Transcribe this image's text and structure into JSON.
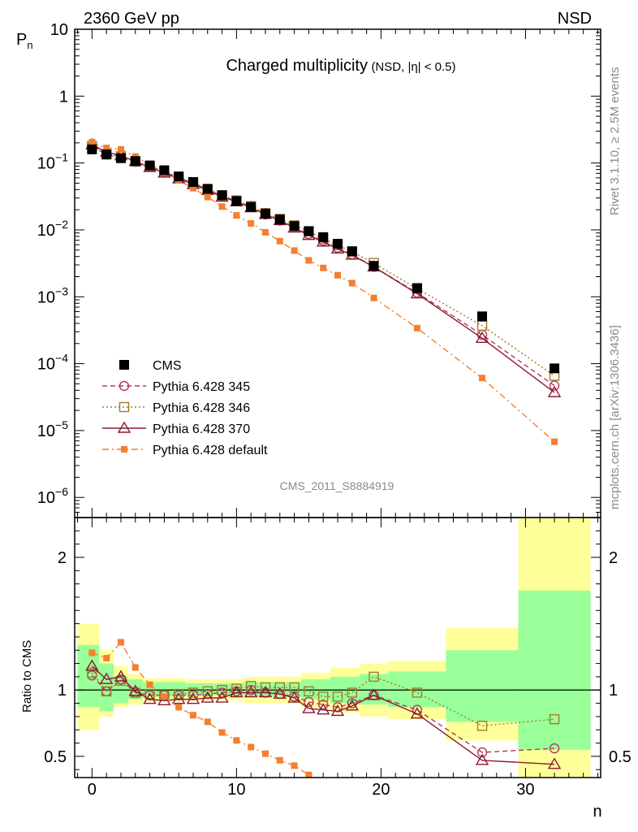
{
  "header": {
    "energy_label": "2360 GeV pp",
    "process_label": "NSD",
    "side_label_top": "Rivet 3.1.10, ≥ 2.5M events",
    "side_label_bottom": "mcplots.cern.ch [arXiv:1306.3436]",
    "analysis_id": "CMS_2011_S8884919"
  },
  "colors": {
    "cms": "#000000",
    "p345": "#b2385a",
    "p346": "#a07c28",
    "p370": "#8b1a30",
    "pdefault": "#f47f2f",
    "band_yellow": "#ffff99",
    "band_green": "#99ff99"
  },
  "chart_data": [
    {
      "type": "scatter",
      "panel": "main",
      "title": "Charged multiplicity",
      "title_suffix": "(NSD, |η| < 0.5)",
      "ylabel": "P",
      "ylabel_sub": "n",
      "yscale": "log",
      "ylim": [
        5e-07,
        10
      ],
      "xlim": [
        -1.2,
        35.2
      ],
      "y_ticks": [
        {
          "v": 1e-06,
          "m": "10",
          "e": "−6"
        },
        {
          "v": 1e-05,
          "m": "10",
          "e": "−5"
        },
        {
          "v": 0.0001,
          "m": "10",
          "e": "−4"
        },
        {
          "v": 0.001,
          "m": "10",
          "e": "−3"
        },
        {
          "v": 0.01,
          "m": "10",
          "e": "−2"
        },
        {
          "v": 0.1,
          "m": "10",
          "e": "−1"
        },
        {
          "v": 1,
          "m": "1",
          "e": ""
        },
        {
          "v": 10,
          "m": "10",
          "e": ""
        }
      ],
      "series": [
        {
          "name": "CMS",
          "key": "cms",
          "marker": "filled-square",
          "line": "none",
          "x": [
            0,
            1,
            2,
            3,
            4,
            5,
            6,
            7,
            8,
            9,
            10,
            11,
            12,
            13,
            14,
            15,
            16,
            17,
            18,
            19.5,
            22.5,
            27,
            32
          ],
          "y": [
            0.16,
            0.135,
            0.118,
            0.107,
            0.092,
            0.078,
            0.063,
            0.052,
            0.041,
            0.033,
            0.027,
            0.022,
            0.0175,
            0.0143,
            0.0114,
            0.0096,
            0.0078,
            0.0062,
            0.0048,
            0.0029,
            0.00135,
            0.00051,
            8.5e-05
          ]
        },
        {
          "name": "Pythia 6.428 345",
          "key": "p345",
          "marker": "open-circle",
          "line": "dashed",
          "x": [
            0,
            1,
            2,
            3,
            4,
            5,
            6,
            7,
            8,
            9,
            10,
            11,
            12,
            13,
            14,
            15,
            16,
            17,
            18,
            19.5,
            22.5,
            27,
            32
          ],
          "y": [
            0.178,
            0.133,
            0.127,
            0.104,
            0.088,
            0.074,
            0.06,
            0.05,
            0.04,
            0.032,
            0.027,
            0.022,
            0.017,
            0.0138,
            0.0109,
            0.0087,
            0.0069,
            0.0054,
            0.0043,
            0.0028,
            0.00115,
            0.00027,
            4.7e-05
          ]
        },
        {
          "name": "Pythia 6.428 346",
          "key": "p346",
          "marker": "open-square",
          "line": "dotted",
          "x": [
            0,
            1,
            2,
            3,
            4,
            5,
            6,
            7,
            8,
            9,
            10,
            11,
            12,
            13,
            14,
            15,
            16,
            17,
            18,
            19.5,
            22.5,
            27,
            32
          ],
          "y": [
            0.18,
            0.134,
            0.126,
            0.105,
            0.089,
            0.075,
            0.061,
            0.051,
            0.041,
            0.033,
            0.0275,
            0.0227,
            0.0178,
            0.0146,
            0.0117,
            0.0095,
            0.0074,
            0.0059,
            0.0047,
            0.0032,
            0.00132,
            0.00037,
            6.6e-05
          ]
        },
        {
          "name": "Pythia 6.428 370",
          "key": "p370",
          "marker": "open-triangle",
          "line": "solid",
          "x": [
            0,
            1,
            2,
            3,
            4,
            5,
            6,
            7,
            8,
            9,
            10,
            11,
            12,
            13,
            14,
            15,
            16,
            17,
            18,
            19.5,
            22.5,
            27,
            32
          ],
          "y": [
            0.188,
            0.146,
            0.129,
            0.106,
            0.086,
            0.071,
            0.058,
            0.048,
            0.039,
            0.031,
            0.0264,
            0.0215,
            0.0171,
            0.0138,
            0.0107,
            0.0083,
            0.0066,
            0.0052,
            0.0042,
            0.0028,
            0.00111,
            0.00024,
            3.7e-05
          ]
        },
        {
          "name": "Pythia 6.428 default",
          "key": "pdefault",
          "marker": "small-filled-square",
          "line": "dashdot",
          "x": [
            0,
            1,
            2,
            3,
            4,
            5,
            6,
            7,
            8,
            9,
            10,
            11,
            12,
            13,
            14,
            15,
            16,
            17,
            18,
            19.5,
            22.5,
            27,
            32
          ],
          "y": [
            0.205,
            0.168,
            0.16,
            0.125,
            0.096,
            0.074,
            0.055,
            0.042,
            0.031,
            0.0223,
            0.0165,
            0.0125,
            0.0092,
            0.0068,
            0.0049,
            0.0035,
            0.0027,
            0.0021,
            0.0016,
            0.00096,
            0.00034,
            6.1e-05,
            6.8e-06
          ]
        }
      ]
    },
    {
      "type": "line",
      "panel": "ratio",
      "ylabel": "Ratio to CMS",
      "xlabel": "n",
      "ylim": [
        0.34,
        2.3
      ],
      "xlim": [
        -1.2,
        35.2
      ],
      "x_ticks": [
        0,
        10,
        20,
        30
      ],
      "y_ticks": [
        0.5,
        1,
        2
      ],
      "reference": 1,
      "bands": [
        {
          "x0": -1,
          "x1": 0.5,
          "y_lo": 0.7,
          "y_hi": 1.5,
          "g_lo": 0.87,
          "g_hi": 1.34
        },
        {
          "x0": 0.5,
          "x1": 1.5,
          "y_lo": 0.8,
          "y_hi": 1.3,
          "g_lo": 0.84,
          "g_hi": 1.2
        },
        {
          "x0": 1.5,
          "x1": 2.5,
          "y_lo": 0.87,
          "y_hi": 1.18,
          "g_lo": 0.9,
          "g_hi": 1.1
        },
        {
          "x0": 2.5,
          "x1": 3.5,
          "y_lo": 0.89,
          "y_hi": 1.12,
          "g_lo": 0.93,
          "g_hi": 1.08
        },
        {
          "x0": 3.5,
          "x1": 6.5,
          "y_lo": 0.91,
          "y_hi": 1.09,
          "g_lo": 0.95,
          "g_hi": 1.06
        },
        {
          "x0": 6.5,
          "x1": 10.5,
          "y_lo": 0.92,
          "y_hi": 1.08,
          "g_lo": 0.96,
          "g_hi": 1.05
        },
        {
          "x0": 10.5,
          "x1": 14.5,
          "y_lo": 0.9,
          "y_hi": 1.1,
          "g_lo": 0.95,
          "g_hi": 1.06
        },
        {
          "x0": 14.5,
          "x1": 16.5,
          "y_lo": 0.87,
          "y_hi": 1.13,
          "g_lo": 0.93,
          "g_hi": 1.08
        },
        {
          "x0": 16.5,
          "x1": 18.5,
          "y_lo": 0.83,
          "y_hi": 1.17,
          "g_lo": 0.9,
          "g_hi": 1.1
        },
        {
          "x0": 18.5,
          "x1": 20.5,
          "y_lo": 0.8,
          "y_hi": 1.2,
          "g_lo": 0.89,
          "g_hi": 1.12
        },
        {
          "x0": 20.5,
          "x1": 24.5,
          "y_lo": 0.78,
          "y_hi": 1.22,
          "g_lo": 0.87,
          "g_hi": 1.14
        },
        {
          "x0": 24.5,
          "x1": 29.5,
          "y_lo": 0.62,
          "y_hi": 1.47,
          "g_lo": 0.76,
          "g_hi": 1.3
        },
        {
          "x0": 29.5,
          "x1": 34.5,
          "y_lo": 0.3,
          "y_hi": 2.3,
          "g_lo": 0.55,
          "g_hi": 1.75
        }
      ],
      "series": [
        {
          "name": "Pythia 6.428 345",
          "key": "p345",
          "marker": "open-circle",
          "line": "dashed",
          "x": [
            0,
            1,
            2,
            3,
            4,
            5,
            6,
            7,
            8,
            9,
            10,
            11,
            12,
            13,
            14,
            15,
            16,
            17,
            18,
            19.5,
            22.5,
            27,
            32
          ],
          "y": [
            1.11,
            0.99,
            1.08,
            0.98,
            0.96,
            0.96,
            0.96,
            0.96,
            0.97,
            0.98,
            0.99,
            1.0,
            0.98,
            0.97,
            0.95,
            0.91,
            0.89,
            0.87,
            0.9,
            0.96,
            0.85,
            0.53,
            0.56
          ]
        },
        {
          "name": "Pythia 6.428 346",
          "key": "p346",
          "marker": "open-square",
          "line": "dotted",
          "x": [
            0,
            1,
            2,
            3,
            4,
            5,
            6,
            7,
            8,
            9,
            10,
            11,
            12,
            13,
            14,
            15,
            16,
            17,
            18,
            19.5,
            22.5,
            27,
            32
          ],
          "y": [
            1.13,
            0.99,
            1.07,
            0.98,
            0.97,
            0.96,
            0.97,
            0.98,
            0.99,
            1.0,
            1.01,
            1.03,
            1.02,
            1.02,
            1.02,
            0.99,
            0.95,
            0.95,
            0.98,
            1.1,
            0.98,
            0.73,
            0.78
          ]
        },
        {
          "name": "Pythia 6.428 370",
          "key": "p370",
          "marker": "open-triangle",
          "line": "solid",
          "x": [
            0,
            1,
            2,
            3,
            4,
            5,
            6,
            7,
            8,
            9,
            10,
            11,
            12,
            13,
            14,
            15,
            16,
            17,
            18,
            19.5,
            22.5,
            27,
            32
          ],
          "y": [
            1.18,
            1.08,
            1.1,
            0.99,
            0.93,
            0.92,
            0.93,
            0.93,
            0.94,
            0.94,
            0.98,
            0.98,
            0.98,
            0.97,
            0.94,
            0.86,
            0.85,
            0.84,
            0.88,
            0.96,
            0.82,
            0.47,
            0.44
          ]
        },
        {
          "name": "Pythia 6.428 default",
          "key": "pdefault",
          "marker": "small-filled-square",
          "line": "dashdot",
          "x": [
            0,
            1,
            2,
            3,
            4,
            5,
            6,
            7,
            8,
            9,
            10,
            11,
            12,
            13,
            14,
            15
          ],
          "y": [
            1.28,
            1.24,
            1.36,
            1.17,
            1.04,
            0.95,
            0.87,
            0.81,
            0.76,
            0.68,
            0.62,
            0.57,
            0.52,
            0.47,
            0.43,
            0.36
          ]
        }
      ]
    }
  ]
}
